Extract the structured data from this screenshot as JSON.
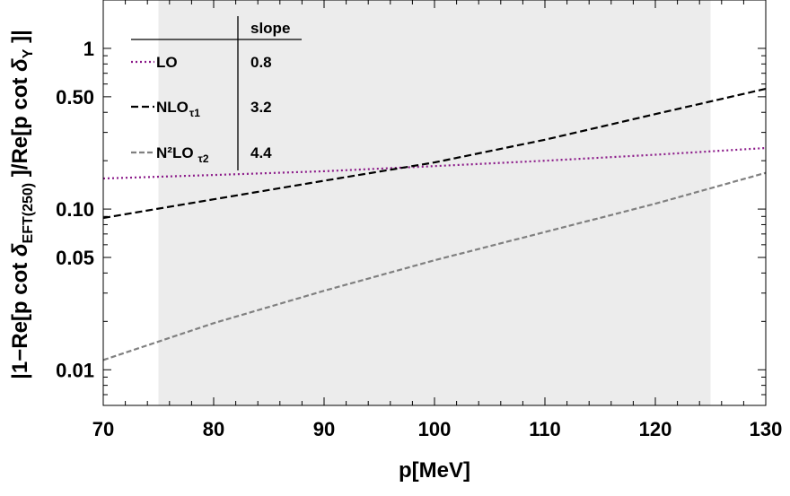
{
  "chart_data": {
    "type": "line",
    "xlabel": "p[MeV]",
    "ylabel_parts": [
      "|1−Re[p cot ",
      "δ",
      "EFT(250)",
      " ]/Re[p cot ",
      "δ",
      "Y",
      " ]|"
    ],
    "xlim": [
      70,
      130
    ],
    "ylim": [
      0.006,
      2.0
    ],
    "yscale": "log",
    "x_ticks": [
      70,
      80,
      90,
      100,
      110,
      120,
      130
    ],
    "y_ticks": [
      {
        "value": 0.01,
        "label": "0.01"
      },
      {
        "value": 0.05,
        "label": "0.05"
      },
      {
        "value": 0.1,
        "label": "0.10"
      },
      {
        "value": 0.5,
        "label": "0.50"
      },
      {
        "value": 1,
        "label": "1"
      }
    ],
    "shaded_region": {
      "x": [
        75,
        125
      ],
      "color": "#ececec"
    },
    "series": [
      {
        "name": "LO",
        "slope": "0.8",
        "color": "#8b1a89",
        "dash": "2,3",
        "x": [
          70,
          80,
          90,
          100,
          110,
          120,
          130
        ],
        "y": [
          0.155,
          0.163,
          0.172,
          0.185,
          0.2,
          0.218,
          0.24
        ]
      },
      {
        "name": "NLO",
        "sub": "τ1",
        "slope": "3.2",
        "color": "#000000",
        "dash": "8,4",
        "x": [
          70,
          80,
          90,
          100,
          110,
          120,
          130
        ],
        "y": [
          0.088,
          0.115,
          0.15,
          0.195,
          0.27,
          0.39,
          0.56
        ]
      },
      {
        "name": "N²LO",
        "sub": "τ2",
        "slope": "4.4",
        "color": "#808080",
        "dash": "6,3",
        "x": [
          70,
          80,
          90,
          100,
          110,
          120,
          130
        ],
        "y": [
          0.0115,
          0.0195,
          0.031,
          0.048,
          0.072,
          0.108,
          0.168
        ]
      }
    ],
    "legend": {
      "header": "slope",
      "placement": "top-left"
    }
  }
}
